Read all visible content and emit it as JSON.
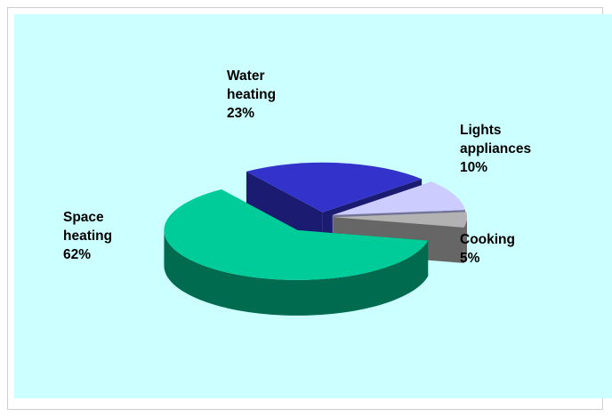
{
  "chart_data": {
    "type": "pie",
    "style": "3d-exploded",
    "slices": [
      {
        "name": "Space heating",
        "label_lines": [
          "Space",
          "heating"
        ],
        "value": 62,
        "value_text": "62%",
        "color": "#00CC99",
        "side_color": "#006B4F"
      },
      {
        "name": "Water heating",
        "label_lines": [
          "Water",
          "heating"
        ],
        "value": 23,
        "value_text": "23%",
        "color": "#3333CC",
        "side_color": "#1B1B72"
      },
      {
        "name": "Lights appliances",
        "label_lines": [
          "Lights",
          "appliances"
        ],
        "value": 10,
        "value_text": "10%",
        "color": "#CCCCFF",
        "side_color": "#74749A"
      },
      {
        "name": "Cooking",
        "label_lines": [
          "Cooking"
        ],
        "value": 5,
        "value_text": "5%",
        "color": "#B2B2B2",
        "side_color": "#666666"
      }
    ],
    "background_color": "#CCFFFF",
    "legend": "none"
  }
}
